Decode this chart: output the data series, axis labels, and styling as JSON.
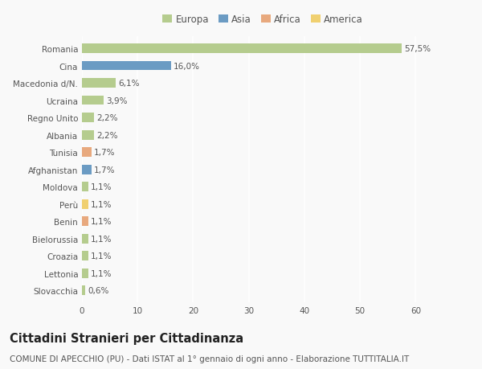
{
  "countries": [
    "Romania",
    "Cina",
    "Macedonia d/N.",
    "Ucraina",
    "Regno Unito",
    "Albania",
    "Tunisia",
    "Afghanistan",
    "Moldova",
    "Perù",
    "Benin",
    "Bielorussia",
    "Croazia",
    "Lettonia",
    "Slovacchia"
  ],
  "values": [
    57.5,
    16.0,
    6.1,
    3.9,
    2.2,
    2.2,
    1.7,
    1.7,
    1.1,
    1.1,
    1.1,
    1.1,
    1.1,
    1.1,
    0.6
  ],
  "labels": [
    "57,5%",
    "16,0%",
    "6,1%",
    "3,9%",
    "2,2%",
    "2,2%",
    "1,7%",
    "1,7%",
    "1,1%",
    "1,1%",
    "1,1%",
    "1,1%",
    "1,1%",
    "1,1%",
    "0,6%"
  ],
  "continents": [
    "Europa",
    "Asia",
    "Europa",
    "Europa",
    "Europa",
    "Europa",
    "Africa",
    "Asia",
    "Europa",
    "America",
    "Africa",
    "Europa",
    "Europa",
    "Europa",
    "Europa"
  ],
  "continent_colors": {
    "Europa": "#b5cc8e",
    "Asia": "#6b9bc3",
    "Africa": "#e8a97e",
    "America": "#f0d070"
  },
  "legend_items": [
    "Europa",
    "Asia",
    "Africa",
    "America"
  ],
  "legend_colors": [
    "#b5cc8e",
    "#6b9bc3",
    "#e8a97e",
    "#f0d070"
  ],
  "title": "Cittadini Stranieri per Cittadinanza",
  "subtitle": "COMUNE DI APECCHIO (PU) - Dati ISTAT al 1° gennaio di ogni anno - Elaborazione TUTTITALIA.IT",
  "xlim": [
    0,
    65
  ],
  "xticks": [
    0,
    10,
    20,
    30,
    40,
    50,
    60
  ],
  "background_color": "#f9f9f9",
  "bar_height": 0.55,
  "grid_color": "#ffffff",
  "text_color": "#555555",
  "title_fontsize": 10.5,
  "subtitle_fontsize": 7.5,
  "label_fontsize": 7.5,
  "tick_fontsize": 7.5,
  "legend_fontsize": 8.5
}
